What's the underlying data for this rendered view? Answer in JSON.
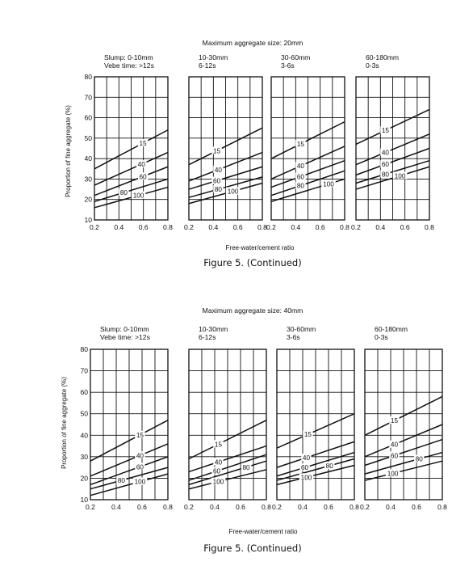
{
  "figure": {
    "caption": "Figure 5. (Continued)",
    "xlabel": "Free-water/cement ratio",
    "ylabel": "Proportion of fine aggregate (%)"
  },
  "chart_data": [
    {
      "type": "line",
      "title": "Maximum aggregate size: 20mm",
      "xlabel": "Free-water/cement ratio",
      "ylabel": "Proportion of fine aggregate (%)",
      "ylim": [
        10,
        80
      ],
      "xlim": [
        0.2,
        0.8
      ],
      "x_ticks": [
        "0.2",
        "0.4",
        "0.6",
        "0.8"
      ],
      "y_ticks": [
        "10",
        "20",
        "30",
        "40",
        "50",
        "60",
        "70",
        "80"
      ],
      "grid": true,
      "panels": [
        {
          "header_line1": "Slump: 0-10mm",
          "header_line2": "Vebe time: >12s",
          "series": [
            {
              "name": "15",
              "x": [
                0.2,
                0.8
              ],
              "y": [
                35,
                54
              ]
            },
            {
              "name": "40",
              "x": [
                0.2,
                0.8
              ],
              "y": [
                27,
                43
              ]
            },
            {
              "name": "60",
              "x": [
                0.2,
                0.8
              ],
              "y": [
                22,
                36
              ]
            },
            {
              "name": "80",
              "x": [
                0.2,
                0.8
              ],
              "y": [
                19,
                30
              ]
            },
            {
              "name": "100",
              "x": [
                0.2,
                0.8
              ],
              "y": [
                16,
                26
              ]
            }
          ]
        },
        {
          "header_line1": "10-30mm",
          "header_line2": "6-12s",
          "series": [
            {
              "name": "15",
              "x": [
                0.2,
                0.8
              ],
              "y": [
                37,
                55
              ]
            },
            {
              "name": "40",
              "x": [
                0.2,
                0.8
              ],
              "y": [
                29,
                43
              ]
            },
            {
              "name": "60",
              "x": [
                0.2,
                0.8
              ],
              "y": [
                25,
                36
              ]
            },
            {
              "name": "80",
              "x": [
                0.2,
                0.8
              ],
              "y": [
                21,
                31
              ]
            },
            {
              "name": "100",
              "x": [
                0.2,
                0.8
              ],
              "y": [
                18,
                28
              ]
            }
          ]
        },
        {
          "header_line1": "30-60mm",
          "header_line2": "3-6s",
          "series": [
            {
              "name": "15",
              "x": [
                0.2,
                0.8
              ],
              "y": [
                40,
                58
              ]
            },
            {
              "name": "40",
              "x": [
                0.2,
                0.8
              ],
              "y": [
                30,
                46
              ]
            },
            {
              "name": "60",
              "x": [
                0.2,
                0.8
              ],
              "y": [
                26,
                39
              ]
            },
            {
              "name": "80",
              "x": [
                0.2,
                0.8
              ],
              "y": [
                22,
                34
              ]
            },
            {
              "name": "100",
              "x": [
                0.2,
                0.8
              ],
              "y": [
                19,
                30
              ]
            }
          ]
        },
        {
          "header_line1": "60-180mm",
          "header_line2": "0-3s",
          "series": [
            {
              "name": "15",
              "x": [
                0.2,
                0.8
              ],
              "y": [
                47,
                64
              ]
            },
            {
              "name": "40",
              "x": [
                0.2,
                0.8
              ],
              "y": [
                37,
                52
              ]
            },
            {
              "name": "60",
              "x": [
                0.2,
                0.8
              ],
              "y": [
                32,
                45
              ]
            },
            {
              "name": "80",
              "x": [
                0.2,
                0.8
              ],
              "y": [
                28,
                39
              ]
            },
            {
              "name": "100",
              "x": [
                0.2,
                0.8
              ],
              "y": [
                25,
                36
              ]
            }
          ]
        }
      ]
    },
    {
      "type": "line",
      "title": "Maximum aggregate size: 40mm",
      "xlabel": "Free-water/cement ratio",
      "ylabel": "Proportion of fine aggregate (%)",
      "ylim": [
        10,
        80
      ],
      "xlim": [
        0.2,
        0.8
      ],
      "x_ticks": [
        "0.2",
        "0.4",
        "0.6",
        "0.8"
      ],
      "y_ticks": [
        "10",
        "20",
        "30",
        "40",
        "50",
        "60",
        "70",
        "80"
      ],
      "grid": true,
      "panels": [
        {
          "header_line1": "Slump: 0-10mm",
          "header_line2": "Vebe time: >12s",
          "series": [
            {
              "name": "15",
              "x": [
                0.2,
                0.8
              ],
              "y": [
                28,
                47
              ]
            },
            {
              "name": "40",
              "x": [
                0.2,
                0.8
              ],
              "y": [
                21,
                36
              ]
            },
            {
              "name": "60",
              "x": [
                0.2,
                0.8
              ],
              "y": [
                17,
                30
              ]
            },
            {
              "name": "80",
              "x": [
                0.2,
                0.8
              ],
              "y": [
                15,
                25
              ]
            },
            {
              "name": "100",
              "x": [
                0.2,
                0.8
              ],
              "y": [
                12,
                22
              ]
            }
          ]
        },
        {
          "header_line1": "10-30mm",
          "header_line2": "6-12s",
          "series": [
            {
              "name": "15",
              "x": [
                0.2,
                0.8
              ],
              "y": [
                29,
                47
              ]
            },
            {
              "name": "40",
              "x": [
                0.2,
                0.8
              ],
              "y": [
                23,
                35
              ]
            },
            {
              "name": "60",
              "x": [
                0.2,
                0.8
              ],
              "y": [
                19,
                31
              ]
            },
            {
              "name": "80",
              "x": [
                0.2,
                0.8
              ],
              "y": [
                17,
                28
              ]
            },
            {
              "name": "100",
              "x": [
                0.2,
                0.8
              ],
              "y": [
                15,
                24
              ]
            }
          ]
        },
        {
          "header_line1": "30-60mm",
          "header_line2": "3-6s",
          "series": [
            {
              "name": "15",
              "x": [
                0.2,
                0.8
              ],
              "y": [
                34,
                50
              ]
            },
            {
              "name": "40",
              "x": [
                0.2,
                0.8
              ],
              "y": [
                25,
                37
              ]
            },
            {
              "name": "60",
              "x": [
                0.2,
                0.8
              ],
              "y": [
                21,
                32
              ]
            },
            {
              "name": "80",
              "x": [
                0.2,
                0.8
              ],
              "y": [
                19,
                29
              ]
            },
            {
              "name": "100",
              "x": [
                0.2,
                0.8
              ],
              "y": [
                17,
                26
              ]
            }
          ]
        },
        {
          "header_line1": "60-180mm",
          "header_line2": "0-3s",
          "series": [
            {
              "name": "15",
              "x": [
                0.2,
                0.8
              ],
              "y": [
                40,
                58
              ]
            },
            {
              "name": "40",
              "x": [
                0.2,
                0.8
              ],
              "y": [
                30,
                45
              ]
            },
            {
              "name": "60",
              "x": [
                0.2,
                0.8
              ],
              "y": [
                26,
                38
              ]
            },
            {
              "name": "80",
              "x": [
                0.2,
                0.8
              ],
              "y": [
                22,
                32
              ]
            },
            {
              "name": "100",
              "x": [
                0.2,
                0.8
              ],
              "y": [
                19,
                28
              ]
            }
          ]
        }
      ]
    }
  ]
}
